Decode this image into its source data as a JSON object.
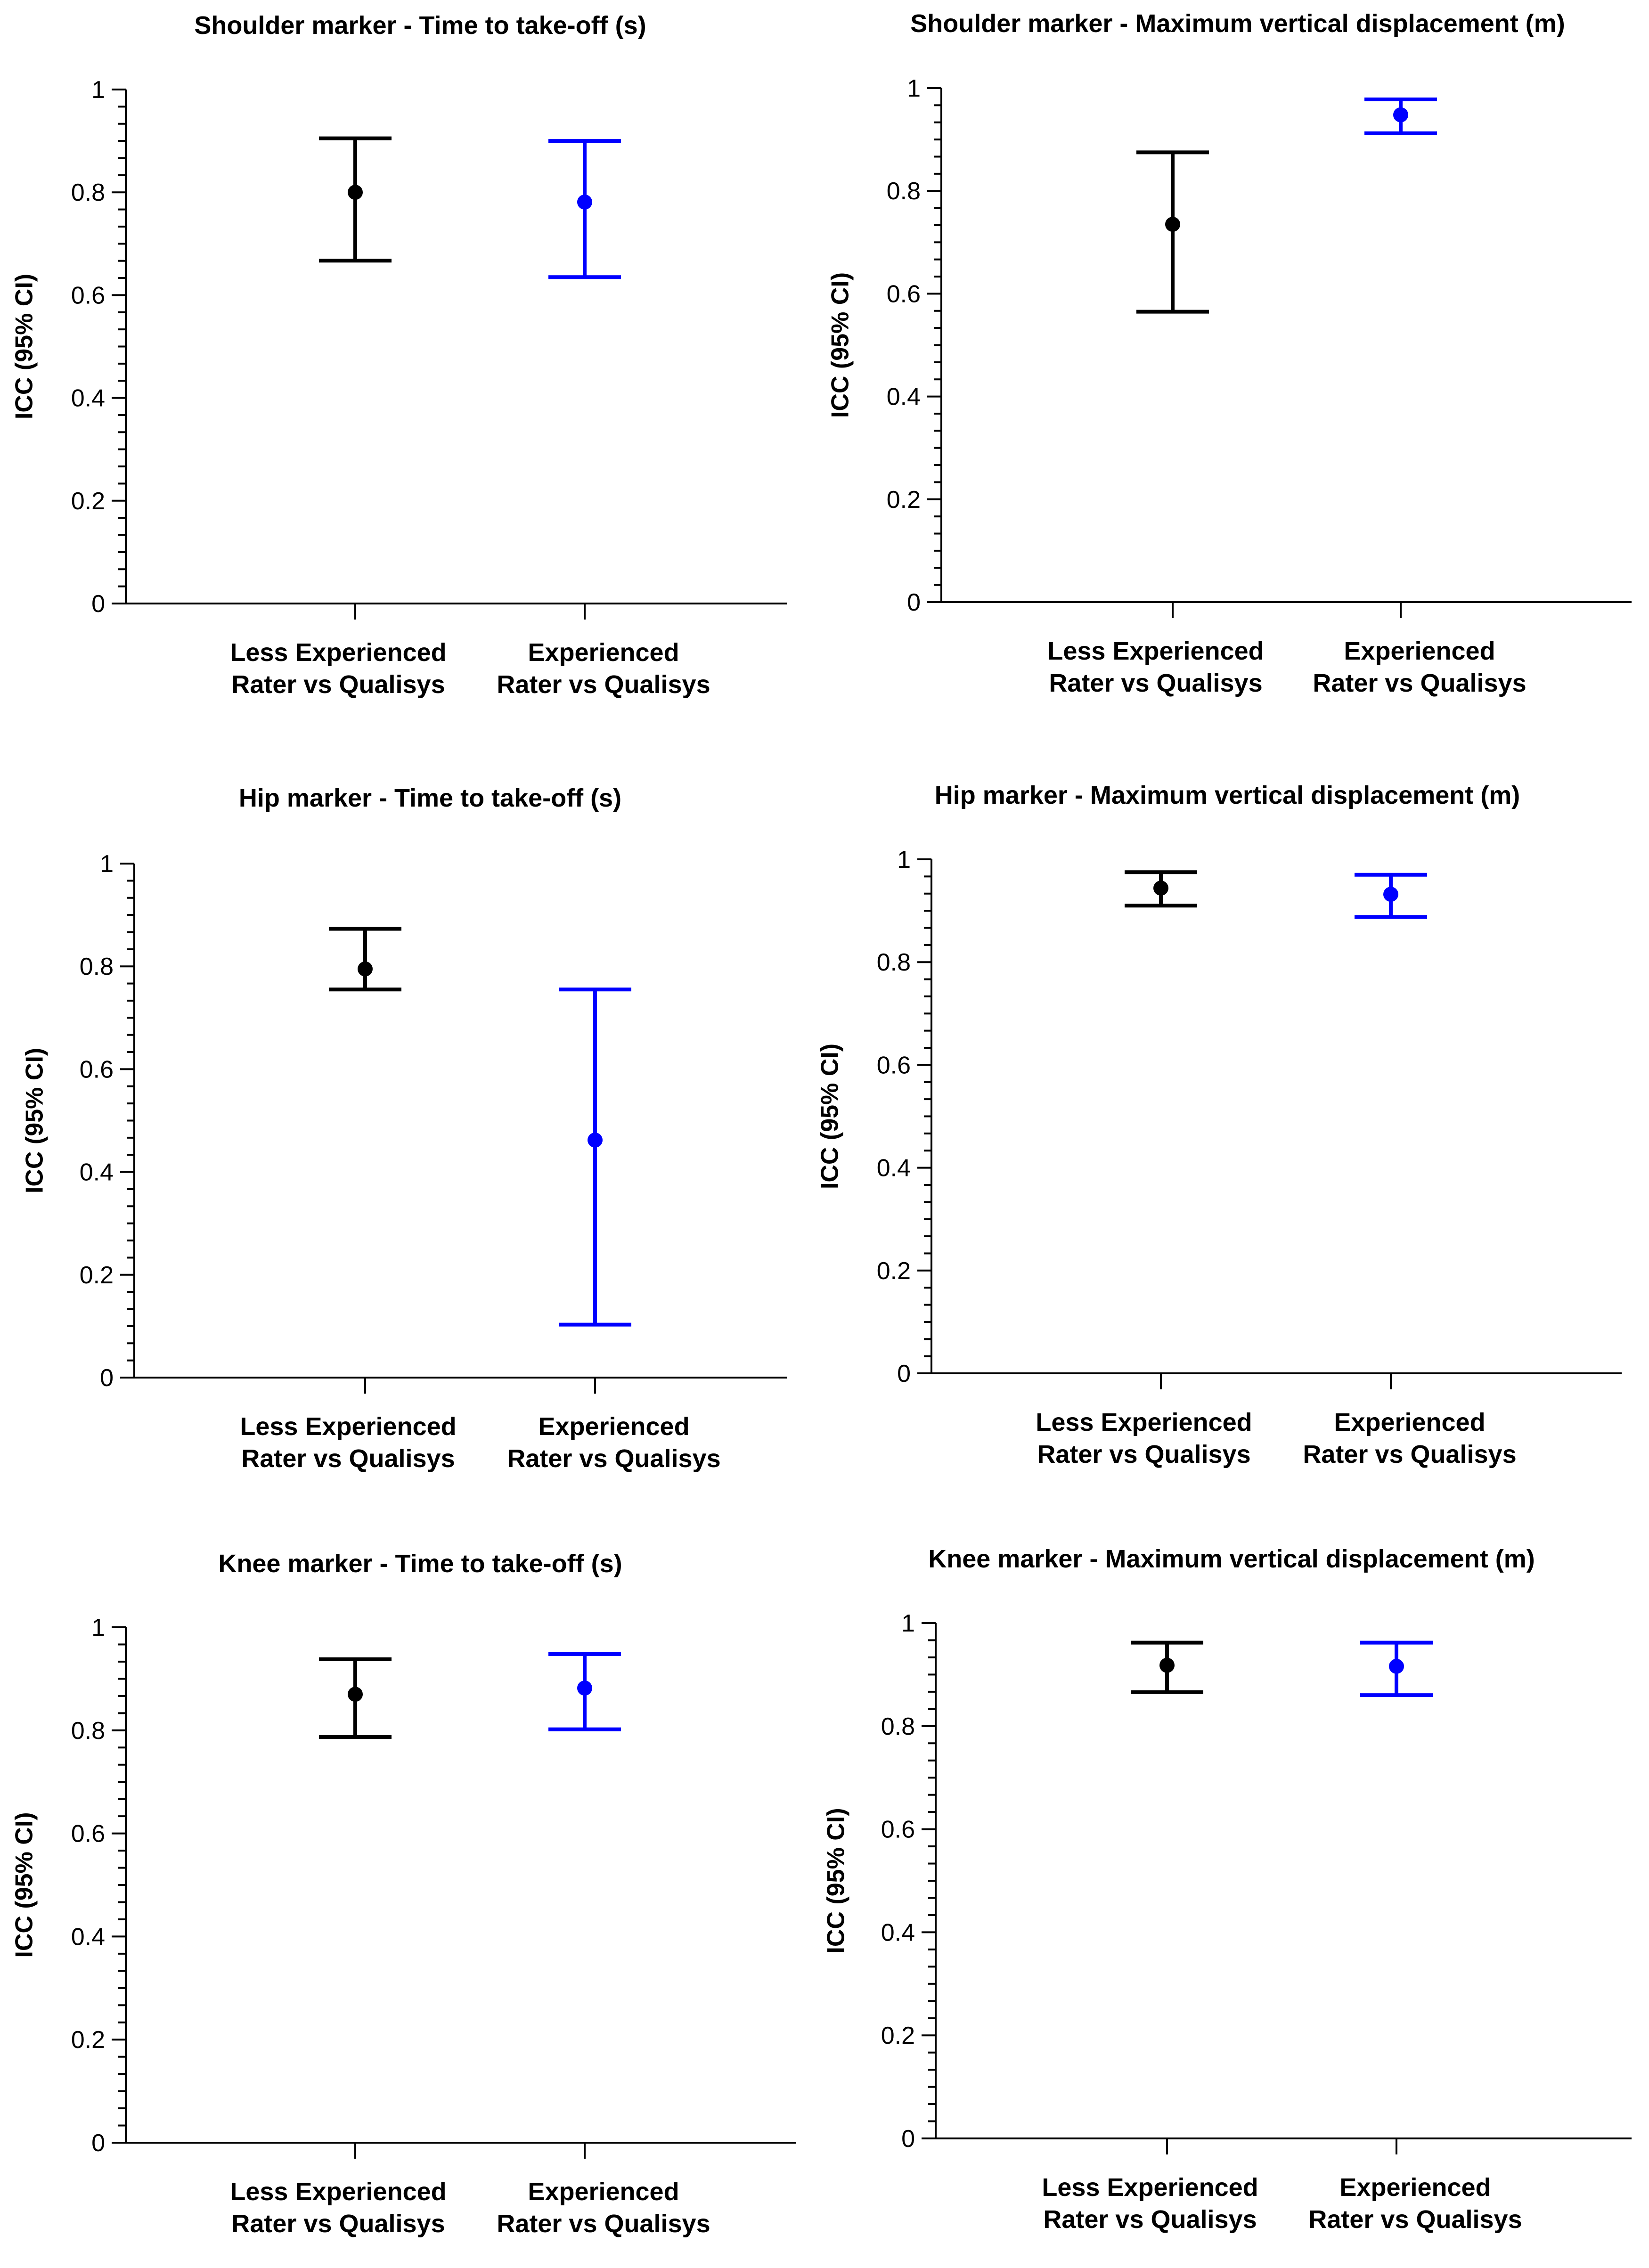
{
  "chart_data": [
    {
      "type": "scatter",
      "title": "Shoulder marker - Time to take-off (s)",
      "ylabel": "ICC (95% CI)",
      "ylim": [
        0,
        1
      ],
      "yticks": [
        "0",
        "0.2",
        "0.4",
        "0.6",
        "0.8",
        "1"
      ],
      "categories": [
        [
          "Less Experienced",
          "Rater vs Qualisys"
        ],
        [
          "Experienced",
          "Rater vs Qualisys"
        ]
      ],
      "points": [
        {
          "mean": 0.8,
          "lower": 0.667,
          "upper": 0.905,
          "color": "#000000"
        },
        {
          "mean": 0.781,
          "lower": 0.635,
          "upper": 0.9,
          "color": "#0000ff"
        }
      ]
    },
    {
      "type": "scatter",
      "title": "Shoulder marker - Maximum vertical displacement (m)",
      "ylabel": "ICC (95% CI)",
      "ylim": [
        0,
        1
      ],
      "yticks": [
        "0",
        "0.2",
        "0.4",
        "0.6",
        "0.8",
        "1"
      ],
      "categories": [
        [
          "Less Experienced",
          "Rater vs Qualisys"
        ],
        [
          "Experienced",
          "Rater vs Qualisys"
        ]
      ],
      "points": [
        {
          "mean": 0.735,
          "lower": 0.565,
          "upper": 0.875,
          "color": "#000000"
        },
        {
          "mean": 0.948,
          "lower": 0.912,
          "upper": 0.978,
          "color": "#0000ff"
        }
      ]
    },
    {
      "type": "scatter",
      "title": "Hip marker - Time to take-off (s)",
      "ylabel": "ICC (95% CI)",
      "ylim": [
        0,
        1
      ],
      "yticks": [
        "0",
        "0.2",
        "0.4",
        "0.6",
        "0.8",
        "1"
      ],
      "categories": [
        [
          "Less Experienced",
          "Rater vs Qualisys"
        ],
        [
          "Experienced",
          "Rater vs Qualisys"
        ]
      ],
      "points": [
        {
          "mean": 0.795,
          "lower": 0.755,
          "upper": 0.873,
          "color": "#000000"
        },
        {
          "mean": 0.462,
          "lower": 0.103,
          "upper": 0.755,
          "color": "#0000ff"
        }
      ]
    },
    {
      "type": "scatter",
      "title": "Hip marker - Maximum vertical displacement (m)",
      "ylabel": "ICC (95% CI)",
      "ylim": [
        0,
        1
      ],
      "yticks": [
        "0",
        "0.2",
        "0.4",
        "0.6",
        "0.8",
        "1"
      ],
      "categories": [
        [
          "Less Experienced",
          "Rater vs Qualisys"
        ],
        [
          "Experienced",
          "Rater vs Qualisys"
        ]
      ],
      "points": [
        {
          "mean": 0.944,
          "lower": 0.91,
          "upper": 0.975,
          "color": "#000000"
        },
        {
          "mean": 0.932,
          "lower": 0.888,
          "upper": 0.97,
          "color": "#0000ff"
        }
      ]
    },
    {
      "type": "scatter",
      "title": "Knee marker - Time to take-off (s)",
      "ylabel": "ICC (95% CI)",
      "ylim": [
        0,
        1
      ],
      "yticks": [
        "0",
        "0.2",
        "0.4",
        "0.6",
        "0.8",
        "1"
      ],
      "categories": [
        [
          "Less Experienced",
          "Rater vs Qualisys"
        ],
        [
          "Experienced",
          "Rater vs Qualisys"
        ]
      ],
      "points": [
        {
          "mean": 0.87,
          "lower": 0.787,
          "upper": 0.938,
          "color": "#000000"
        },
        {
          "mean": 0.882,
          "lower": 0.802,
          "upper": 0.948,
          "color": "#0000ff"
        }
      ]
    },
    {
      "type": "scatter",
      "title": "Knee marker - Maximum vertical displacement (m)",
      "ylabel": "ICC (95% CI)",
      "ylim": [
        0,
        1
      ],
      "yticks": [
        "0",
        "0.2",
        "0.4",
        "0.6",
        "0.8",
        "1"
      ],
      "categories": [
        [
          "Less Experienced",
          "Rater vs Qualisys"
        ],
        [
          "Experienced",
          "Rater vs Qualisys"
        ]
      ],
      "points": [
        {
          "mean": 0.918,
          "lower": 0.866,
          "upper": 0.962,
          "color": "#000000"
        },
        {
          "mean": 0.916,
          "lower": 0.86,
          "upper": 0.962,
          "color": "#0000ff"
        }
      ]
    }
  ]
}
